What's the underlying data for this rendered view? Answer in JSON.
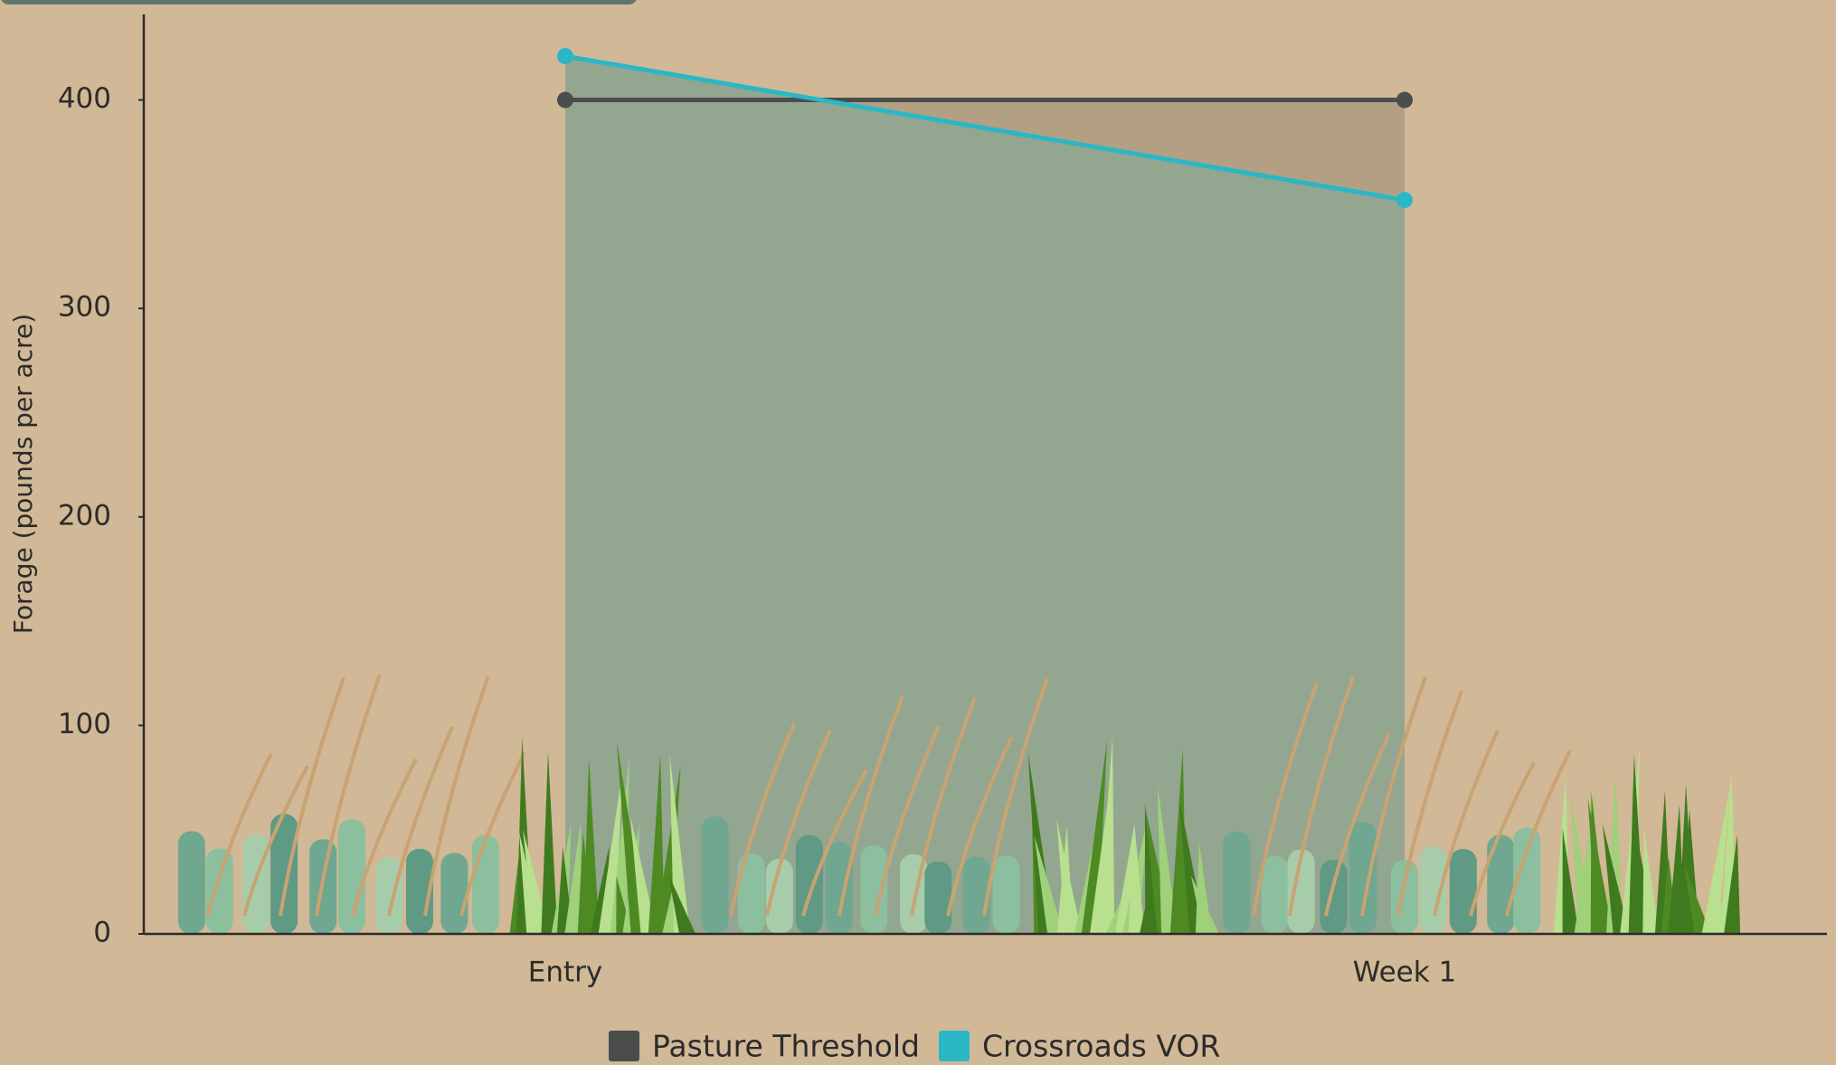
{
  "chart_data": {
    "type": "line",
    "y_label": "Forage (pounds per acre)",
    "categories": [
      "Entry",
      "Week 1"
    ],
    "series": [
      {
        "name": "Pasture Threshold",
        "color": "#4a4d4c",
        "values": [
          400,
          400
        ]
      },
      {
        "name": "Crossroads VOR",
        "color": "#2ab7c6",
        "values": [
          421,
          352
        ]
      }
    ],
    "ylim": [
      0,
      441
    ],
    "yticks": [
      0,
      100,
      200,
      300,
      400
    ],
    "fill_color": "#93a690",
    "deficit_color": "#b3a084"
  }
}
